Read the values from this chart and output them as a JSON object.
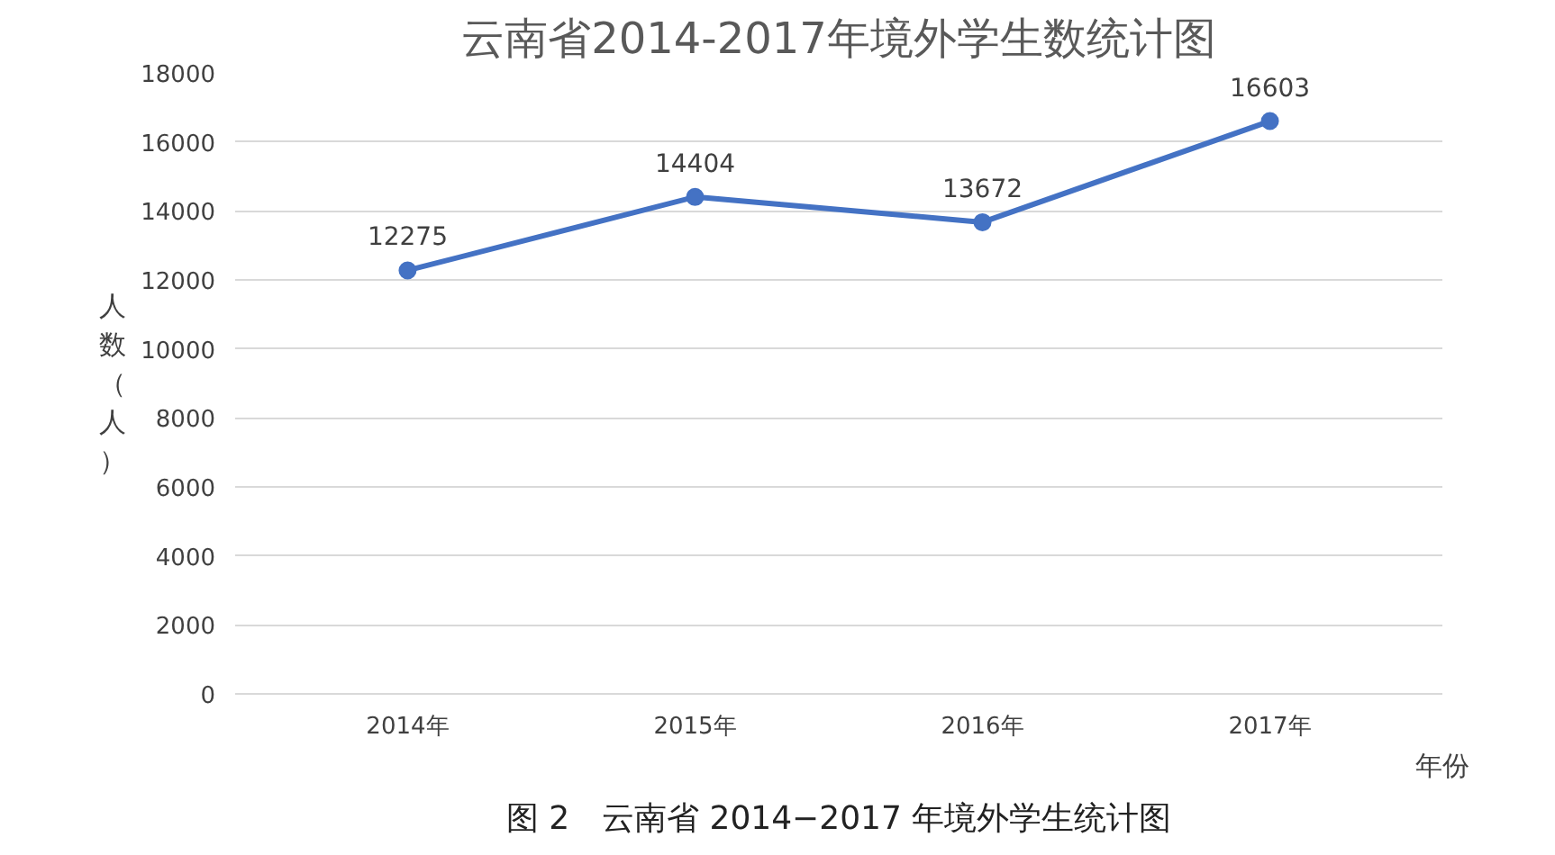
{
  "chart_data": {
    "type": "line",
    "title": "云南省2014-2017年境外学生数统计图",
    "ylabel": "人数（人）",
    "xlabel": "年份",
    "categories": [
      "2014年",
      "2015年",
      "2016年",
      "2017年"
    ],
    "series": [
      {
        "color": "#4472c4",
        "values": [
          12275,
          14404,
          13672,
          16603
        ]
      }
    ],
    "ylim": [
      0,
      18000
    ],
    "yticks": [
      0,
      2000,
      4000,
      6000,
      8000,
      10000,
      12000,
      14000,
      16000,
      18000
    ],
    "grid": "y",
    "marker": "circle",
    "line_style": "solid",
    "data_labels": true,
    "annotations": [
      "图 2　云南省 2014−2017 年境外学生统计图"
    ]
  }
}
